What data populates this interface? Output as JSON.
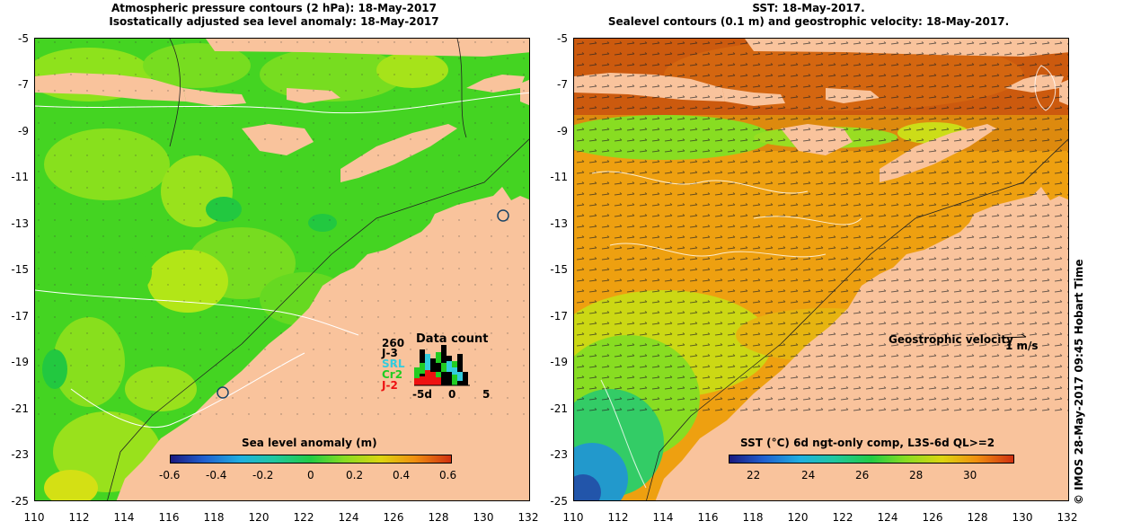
{
  "left_panel": {
    "title_line1": "Atmospheric pressure contours (2 hPa): 18-May-2017",
    "title_line2": "Isostatically adjusted sea level anomaly: 18-May-2017",
    "colorbar": {
      "label": "Sea level anomaly (m)",
      "ticks": [
        "-0.6",
        "-0.4",
        "-0.2",
        "0",
        "0.2",
        "0.4",
        "0.6"
      ],
      "range": [
        -0.6,
        0.6
      ]
    },
    "data_count": {
      "title": "Data count",
      "max_label": "260",
      "missions": [
        {
          "name": "J-3",
          "color": "#000000"
        },
        {
          "name": "SRL",
          "color": "#33ccdd"
        },
        {
          "name": "Cr2",
          "color": "#22cc22"
        },
        {
          "name": "J-2",
          "color": "#ee1111"
        }
      ],
      "axis_labels": [
        "-5d",
        "0",
        "5"
      ]
    }
  },
  "right_panel": {
    "title_line1": "SST: 18-May-2017.",
    "title_line2": "Sealevel contours (0.1 m) and geostrophic velocity: 18-May-2017.",
    "velocity_label": "Geostrophic velocity",
    "velocity_scale": "1 m/s",
    "colorbar": {
      "label": "SST (°C) 6d ngt-only comp, L3S-6d QL>=2",
      "ticks": [
        "22",
        "24",
        "26",
        "28",
        "30"
      ],
      "range": [
        21,
        31.5
      ]
    }
  },
  "axes": {
    "lat_ticks": [
      "-5",
      "-7",
      "-9",
      "-11",
      "-13",
      "-15",
      "-17",
      "-19",
      "-21",
      "-23",
      "-25"
    ],
    "lon_ticks": [
      "110",
      "112",
      "114",
      "116",
      "118",
      "120",
      "122",
      "124",
      "126",
      "128",
      "130",
      "132"
    ]
  },
  "credit": "© IMOS 28-May-2017 09:45 Hobart Time",
  "colors": {
    "land": "#f9c39c",
    "ocean_green": "#55dd22",
    "sst_orange": "#ee9900"
  }
}
